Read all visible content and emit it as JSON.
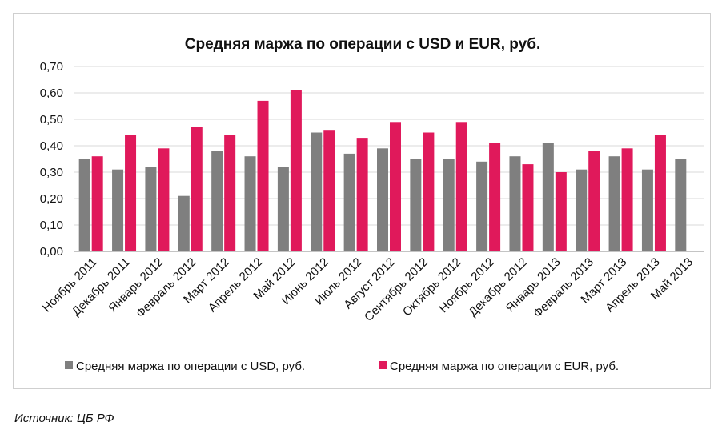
{
  "chart_data": {
    "type": "bar",
    "title": "Средняя маржа по операции с USD и EUR, руб.",
    "categories": [
      "Ноябрь 2011",
      "Декабрь 2011",
      "Январь 2012",
      "Февраль 2012",
      "Март 2012",
      "Апрель 2012",
      "Май 2012",
      "Июнь 2012",
      "Июль 2012",
      "Август 2012",
      "Сентябрь 2012",
      "Октябрь 2012",
      "Ноябрь 2012",
      "Декабрь 2012",
      "Январь 2013",
      "Февраль 2013",
      "Март 2013",
      "Апрель 2013",
      "Май 2013"
    ],
    "series": [
      {
        "name": "Средняя маржа по операции с USD, руб.",
        "color": "#7f7f7f",
        "values": [
          0.35,
          0.31,
          0.32,
          0.21,
          0.38,
          0.36,
          0.32,
          0.45,
          0.37,
          0.39,
          0.35,
          0.35,
          0.34,
          0.36,
          0.41,
          0.31,
          0.36,
          0.31,
          0.35
        ]
      },
      {
        "name": "Средняя маржа по операции с EUR, руб.",
        "color": "#e0195b",
        "values": [
          0.36,
          0.44,
          0.39,
          0.47,
          0.44,
          0.57,
          0.61,
          0.46,
          0.43,
          0.49,
          0.45,
          0.49,
          0.41,
          0.33,
          0.3,
          0.38,
          0.39,
          0.44,
          null
        ]
      }
    ],
    "yticks": [
      "0,00",
      "0,10",
      "0,20",
      "0,30",
      "0,40",
      "0,50",
      "0,60",
      "0,70"
    ],
    "ylim": [
      0,
      0.7
    ],
    "grid": true,
    "legend_position": "bottom"
  },
  "source": "Источник: ЦБ РФ"
}
